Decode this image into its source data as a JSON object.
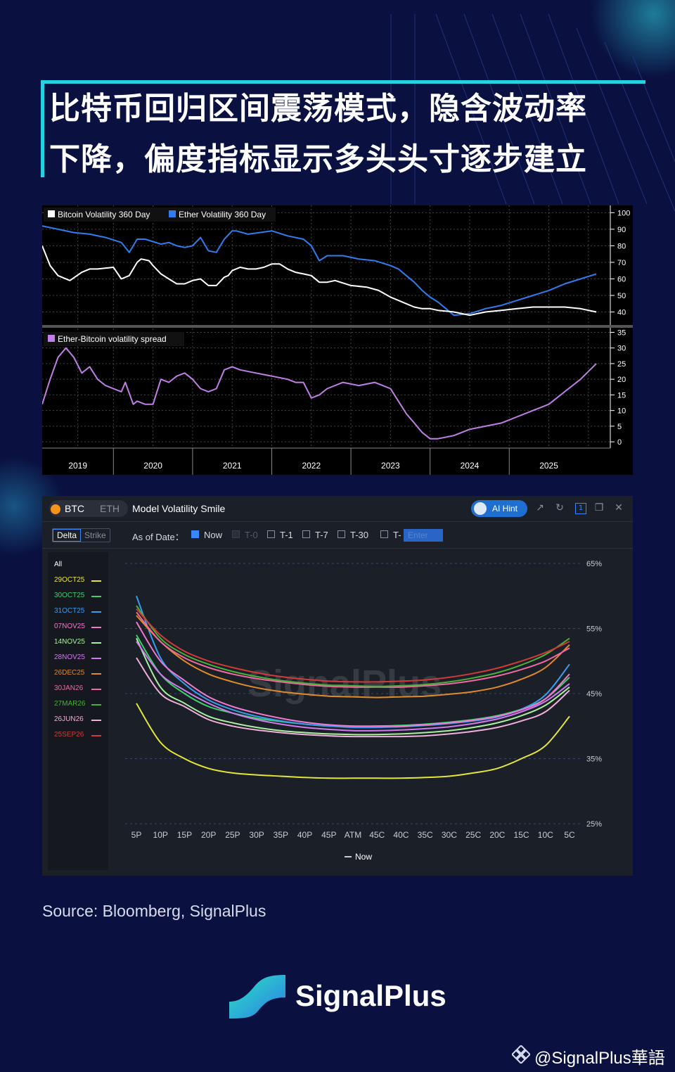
{
  "title": {
    "line1": "比特币回归区间震荡模式，隐含波动率",
    "line2": "下降，偏度指标显示多头头寸逐步建立"
  },
  "colors": {
    "background": "#0a1140",
    "accent": "#27d0e3",
    "btc_vol": "#ffffff",
    "eth_vol": "#2f7df0",
    "spread": "#c07ee6"
  },
  "chart_data": [
    {
      "type": "line",
      "legend": [
        "Bitcoin Volatility 360 Day",
        "Ether Volatility 360 Day"
      ],
      "x_ticks": [
        "2019",
        "2020",
        "2021",
        "2022",
        "2023",
        "2024",
        "2025"
      ],
      "y_ticks": [
        "100",
        "90",
        "80",
        "70",
        "60",
        "50",
        "40"
      ],
      "ylim": [
        33,
        101
      ],
      "xlim": [
        2018.6,
        2025.75
      ],
      "series": [
        {
          "name": "Bitcoin Volatility 360 Day",
          "x": [
            2018.6,
            2018.7,
            2018.8,
            2018.95,
            2019.1,
            2019.2,
            2019.3,
            2019.5,
            2019.6,
            2019.7,
            2019.8,
            2019.85,
            2019.95,
            2020.0,
            2020.1,
            2020.2,
            2020.3,
            2020.4,
            2020.5,
            2020.6,
            2020.7,
            2020.8,
            2020.9,
            2020.95,
            2021.0,
            2021.1,
            2021.2,
            2021.3,
            2021.4,
            2021.5,
            2021.6,
            2021.7,
            2021.8,
            2021.9,
            2022.0,
            2022.1,
            2022.2,
            2022.3,
            2022.5,
            2022.7,
            2022.85,
            2023.0,
            2023.1,
            2023.2,
            2023.3,
            2023.4,
            2023.5,
            2023.6,
            2023.8,
            2024.0,
            2024.2,
            2024.4,
            2024.6,
            2024.8,
            2025.0,
            2025.2,
            2025.4,
            2025.6
          ],
          "values": [
            80,
            68,
            62,
            59,
            64,
            66,
            66,
            67,
            60,
            62,
            70,
            72,
            71,
            68,
            63,
            60,
            57,
            57,
            59,
            60,
            56,
            56,
            61,
            62,
            65,
            67,
            66,
            66,
            67,
            69,
            69,
            66,
            64,
            63,
            62,
            58,
            58,
            59,
            56,
            55,
            53,
            49,
            47,
            45,
            43,
            42,
            42,
            41,
            40,
            38,
            40,
            41,
            42,
            43,
            43,
            43,
            42,
            40
          ]
        },
        {
          "name": "Ether Volatility 360 Day",
          "x": [
            2018.6,
            2018.8,
            2019.0,
            2019.2,
            2019.4,
            2019.6,
            2019.7,
            2019.8,
            2019.9,
            2020.1,
            2020.2,
            2020.3,
            2020.4,
            2020.5,
            2020.6,
            2020.7,
            2020.8,
            2020.9,
            2021.0,
            2021.05,
            2021.2,
            2021.35,
            2021.5,
            2021.7,
            2021.9,
            2022.0,
            2022.1,
            2022.2,
            2022.4,
            2022.6,
            2022.8,
            2023.0,
            2023.1,
            2023.2,
            2023.3,
            2023.4,
            2023.5,
            2023.6,
            2023.8,
            2024.0,
            2024.2,
            2024.4,
            2024.6,
            2024.8,
            2025.0,
            2025.2,
            2025.4,
            2025.6
          ],
          "values": [
            92,
            90,
            88,
            87,
            85,
            82,
            76,
            84,
            84,
            81,
            82,
            80,
            79,
            80,
            85,
            77,
            76,
            84,
            89,
            89,
            87,
            88,
            89,
            86,
            84,
            80,
            71,
            74,
            74,
            72,
            71,
            68,
            66,
            62,
            58,
            53,
            49,
            46,
            38,
            39,
            42,
            44,
            47,
            50,
            53,
            57,
            60,
            63
          ]
        }
      ]
    },
    {
      "type": "line",
      "legend": [
        "Ether-Bitcoin volatility spread"
      ],
      "y_ticks": [
        "35",
        "30",
        "25",
        "20",
        "15",
        "10",
        "5",
        "0"
      ],
      "ylim": [
        -2,
        36
      ],
      "xlim": [
        2018.6,
        2025.75
      ],
      "series": [
        {
          "name": "Ether-Bitcoin volatility spread",
          "x": [
            2018.6,
            2018.7,
            2018.8,
            2018.9,
            2019.0,
            2019.1,
            2019.2,
            2019.3,
            2019.4,
            2019.5,
            2019.6,
            2019.65,
            2019.75,
            2019.8,
            2019.9,
            2020.0,
            2020.1,
            2020.2,
            2020.3,
            2020.4,
            2020.5,
            2020.6,
            2020.7,
            2020.8,
            2020.9,
            2021.0,
            2021.1,
            2021.3,
            2021.5,
            2021.7,
            2021.8,
            2021.9,
            2022.0,
            2022.1,
            2022.2,
            2022.4,
            2022.6,
            2022.8,
            2023.0,
            2023.1,
            2023.2,
            2023.3,
            2023.4,
            2023.5,
            2023.6,
            2023.8,
            2024.0,
            2024.2,
            2024.4,
            2024.6,
            2024.8,
            2025.0,
            2025.2,
            2025.4,
            2025.6
          ],
          "values": [
            12,
            20,
            27,
            30,
            27,
            22,
            24,
            20,
            18,
            17,
            16,
            19,
            12,
            13,
            12,
            12,
            20,
            19,
            21,
            22,
            20,
            17,
            16,
            17,
            23,
            24,
            23,
            22,
            21,
            20,
            19,
            19,
            14,
            15,
            17,
            19,
            18,
            19,
            17,
            13,
            9,
            6,
            3,
            1,
            1,
            2,
            4,
            5,
            6,
            8,
            10,
            12,
            16,
            20,
            25
          ]
        }
      ]
    },
    {
      "type": "line",
      "title": "Model Volatility Smile",
      "categories": [
        "5P",
        "10P",
        "15P",
        "20P",
        "25P",
        "30P",
        "35P",
        "40P",
        "45P",
        "ATM",
        "45C",
        "40C",
        "35C",
        "30C",
        "25C",
        "20C",
        "15C",
        "10C",
        "5C"
      ],
      "y_ticks": [
        "65%",
        "55%",
        "45%",
        "35%",
        "25%"
      ],
      "ylim": [
        25,
        65
      ],
      "x_legend": "Now",
      "series": [
        {
          "name": "29OCT25",
          "color": "#e6e63a",
          "values": [
            43.5,
            37.5,
            35.0,
            33.5,
            32.8,
            32.5,
            32.3,
            32.1,
            32.0,
            32.0,
            32.0,
            32.0,
            32.1,
            32.3,
            32.8,
            33.5,
            35.0,
            37.0,
            41.5
          ]
        },
        {
          "name": "30OCT25",
          "color": "#3ad26a",
          "values": [
            54.0,
            48.0,
            45.0,
            43.0,
            42.0,
            41.2,
            40.7,
            40.3,
            40.0,
            40.0,
            40.0,
            40.1,
            40.3,
            40.6,
            41.0,
            41.6,
            42.6,
            44.2,
            47.5
          ]
        },
        {
          "name": "31OCT25",
          "color": "#3a9cf0",
          "values": [
            60.0,
            50.5,
            46.5,
            44.0,
            42.5,
            41.5,
            40.8,
            40.3,
            40.0,
            39.8,
            39.8,
            39.9,
            40.1,
            40.4,
            40.8,
            41.4,
            42.6,
            44.8,
            49.5
          ]
        },
        {
          "name": "07NOV25",
          "color": "#f07ad2",
          "values": [
            56.0,
            50.0,
            47.0,
            44.5,
            43.0,
            42.0,
            41.2,
            40.6,
            40.2,
            40.0,
            40.0,
            40.0,
            40.2,
            40.5,
            40.9,
            41.5,
            42.5,
            44.2,
            48.0
          ]
        },
        {
          "name": "14NOV25",
          "color": "#a8f0a0",
          "values": [
            53.5,
            46.0,
            43.5,
            41.5,
            40.5,
            39.8,
            39.3,
            39.0,
            38.8,
            38.7,
            38.7,
            38.8,
            39.0,
            39.3,
            39.8,
            40.5,
            41.6,
            43.2,
            46.0
          ]
        },
        {
          "name": "28NOV25",
          "color": "#d07af0",
          "values": [
            53.0,
            48.0,
            45.5,
            43.5,
            42.0,
            41.0,
            40.3,
            39.8,
            39.5,
            39.3,
            39.3,
            39.4,
            39.6,
            39.9,
            40.4,
            41.1,
            42.2,
            43.8,
            46.5
          ]
        },
        {
          "name": "26DEC25",
          "color": "#e08a2a",
          "values": [
            57.0,
            53.0,
            50.0,
            48.0,
            46.8,
            45.9,
            45.3,
            44.9,
            44.6,
            44.5,
            44.4,
            44.5,
            44.6,
            44.9,
            45.3,
            46.0,
            47.2,
            49.0,
            52.5
          ]
        },
        {
          "name": "30JAN26",
          "color": "#f06aa0",
          "values": [
            57.5,
            53.0,
            50.5,
            49.0,
            48.0,
            47.3,
            46.8,
            46.4,
            46.1,
            46.0,
            46.0,
            46.0,
            46.2,
            46.5,
            47.0,
            47.7,
            48.7,
            50.0,
            52.0
          ]
        },
        {
          "name": "27MAR26",
          "color": "#4ab03a",
          "values": [
            58.5,
            53.5,
            51.0,
            49.5,
            48.4,
            47.6,
            47.0,
            46.6,
            46.3,
            46.2,
            46.1,
            46.2,
            46.4,
            46.8,
            47.4,
            48.2,
            49.4,
            51.0,
            53.5
          ]
        },
        {
          "name": "26JUN26",
          "color": "#f0b0d8",
          "values": [
            50.5,
            45.0,
            43.0,
            41.0,
            40.0,
            39.4,
            39.0,
            38.7,
            38.5,
            38.4,
            38.4,
            38.4,
            38.5,
            38.8,
            39.2,
            39.8,
            40.8,
            42.2,
            45.5
          ]
        },
        {
          "name": "25SEP26",
          "color": "#d03a3a",
          "values": [
            58.0,
            54.0,
            51.5,
            50.0,
            49.0,
            48.2,
            47.6,
            47.2,
            46.9,
            46.8,
            46.8,
            46.9,
            47.1,
            47.5,
            48.1,
            48.9,
            50.0,
            51.3,
            53.0
          ]
        }
      ]
    }
  ],
  "smile_ui": {
    "tabs": {
      "btc": "BTC",
      "eth": "ETH"
    },
    "title": "Model Volatility Smile",
    "ai_hint": "AI Hint",
    "badge": "1",
    "mode": {
      "delta": "Delta",
      "strike": "Strike"
    },
    "as_of": "As of Date：",
    "checks": [
      "Now",
      "T-0",
      "T-1",
      "T-7",
      "T-30",
      "T-"
    ],
    "enter_placeholder": "Enter",
    "legend_all": "All",
    "watermark": "SignalPlus"
  },
  "footer": {
    "source": "Source: Bloomberg, SignalPlus",
    "brand": "SignalPlus",
    "handle": "@SignalPlus華語"
  }
}
